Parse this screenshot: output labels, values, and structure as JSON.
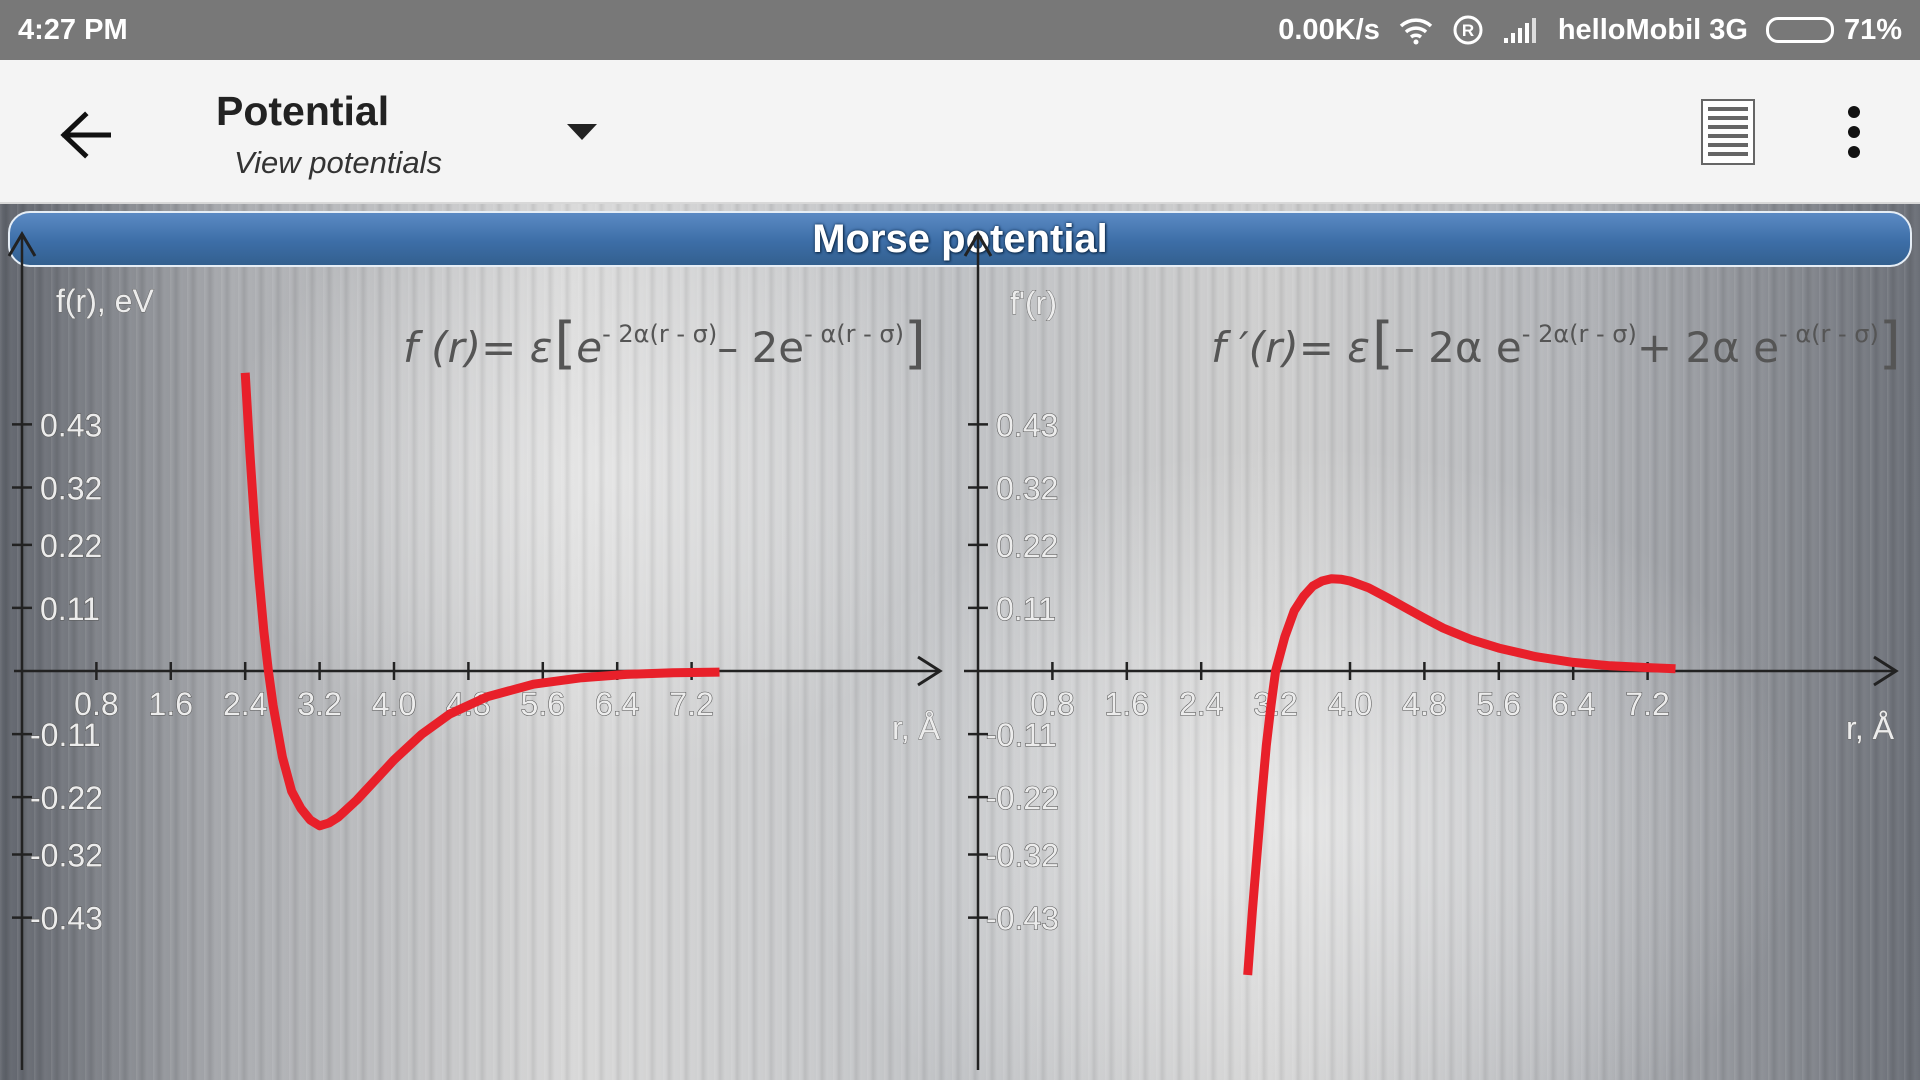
{
  "status_bar": {
    "time": "4:27 PM",
    "net_speed": "0.00K/s",
    "carrier": "helloMobil 3G",
    "battery": "71%",
    "battery_level": 0.71
  },
  "app_bar": {
    "title": "Potential",
    "subtitle": "View potentials"
  },
  "banner": {
    "title": "Morse potential"
  },
  "colors": {
    "curve": "#e8202a",
    "banner": "#3d6ea7",
    "appbar": "#f4f4f4",
    "statusbar": "#787878"
  },
  "chart_data": [
    {
      "type": "line",
      "title": "",
      "formula": {
        "lhs": "f (r)= ε",
        "term1_base": "e",
        "term1_exp": "- 2α(r - σ)",
        "op": "– 2e",
        "term2_exp": "- α(r - σ)"
      },
      "ylabel": "f(r), eV",
      "xlabel": "r, Å",
      "x_ticks": [
        "0.8",
        "1.6",
        "2.4",
        "3.2",
        "4.0",
        "4.8",
        "5.6",
        "6.4",
        "7.2"
      ],
      "y_ticks": [
        "0.43",
        "0.32",
        "0.22",
        "0.11",
        "-0.11",
        "-0.22",
        "-0.32",
        "-0.43"
      ],
      "xlim": [
        0,
        7.8
      ],
      "ylim": [
        -0.56,
        0.52
      ],
      "series": [
        {
          "x": [
            2.4,
            2.45,
            2.5,
            2.55,
            2.6,
            2.65,
            2.7,
            2.8,
            2.9,
            3.0,
            3.1,
            3.2,
            3.3,
            3.4,
            3.6,
            3.8,
            4.0,
            4.3,
            4.6,
            5.0,
            5.5,
            6.0,
            6.5,
            7.0,
            7.5
          ],
          "y": [
            0.52,
            0.38,
            0.26,
            0.16,
            0.07,
            0.0,
            -0.06,
            -0.15,
            -0.21,
            -0.24,
            -0.26,
            -0.27,
            -0.265,
            -0.255,
            -0.225,
            -0.19,
            -0.155,
            -0.11,
            -0.075,
            -0.045,
            -0.023,
            -0.012,
            -0.006,
            -0.003,
            -0.002
          ]
        }
      ]
    },
    {
      "type": "line",
      "title": "",
      "formula": {
        "lhs": "f ′(r)= ε",
        "term1": "– 2α e",
        "term1_exp": "- 2α(r - σ)",
        "op": "+ 2α e",
        "term2_exp": "- α(r - σ)"
      },
      "ylabel": "f'(r)",
      "xlabel": "r, Å",
      "x_ticks": [
        "0.8",
        "1.6",
        "2.4",
        "3.2",
        "4.0",
        "4.8",
        "5.6",
        "6.4",
        "7.2"
      ],
      "y_ticks": [
        "0.43",
        "0.32",
        "0.22",
        "0.11",
        "-0.11",
        "-0.22",
        "-0.32",
        "-0.43"
      ],
      "xlim": [
        0,
        7.8
      ],
      "ylim": [
        -0.56,
        0.52
      ],
      "series": [
        {
          "x": [
            2.9,
            2.95,
            3.0,
            3.05,
            3.1,
            3.15,
            3.2,
            3.3,
            3.4,
            3.5,
            3.6,
            3.7,
            3.8,
            3.9,
            4.0,
            4.2,
            4.4,
            4.6,
            4.8,
            5.0,
            5.3,
            5.6,
            6.0,
            6.4,
            6.8,
            7.2,
            7.5
          ],
          "y": [
            -0.53,
            -0.42,
            -0.32,
            -0.22,
            -0.13,
            -0.06,
            0.0,
            0.06,
            0.105,
            0.13,
            0.148,
            0.157,
            0.161,
            0.16,
            0.157,
            0.145,
            0.128,
            0.11,
            0.092,
            0.075,
            0.055,
            0.04,
            0.025,
            0.015,
            0.009,
            0.006,
            0.004
          ]
        }
      ]
    }
  ]
}
